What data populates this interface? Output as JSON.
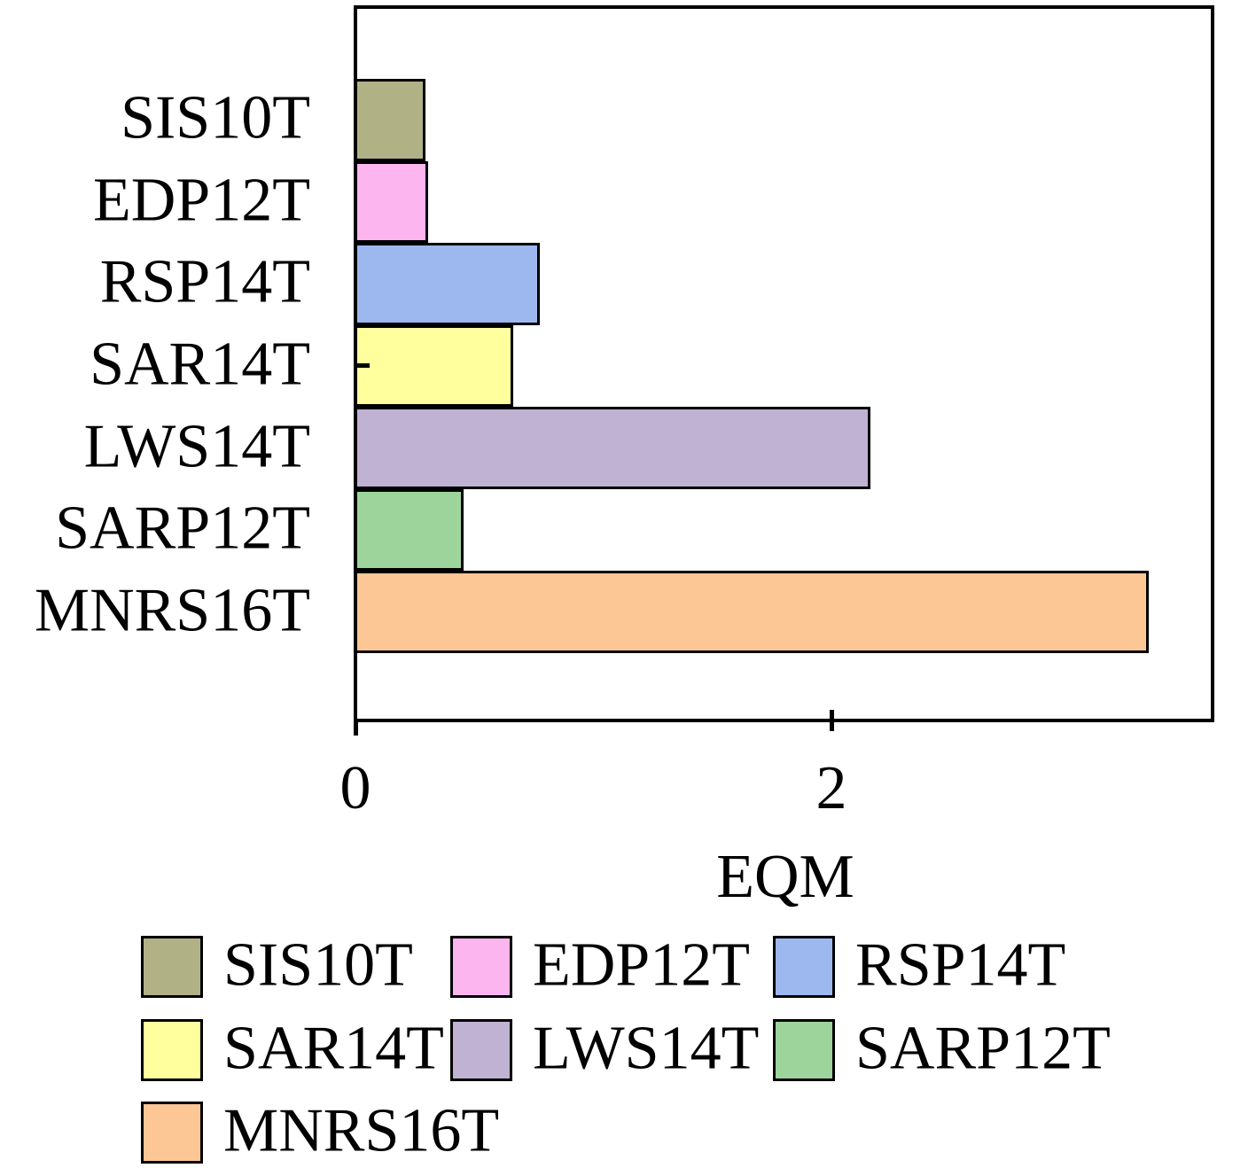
{
  "figure": {
    "background": "#ffffff",
    "frame_color": "#000000"
  },
  "chart_data": {
    "type": "bar",
    "orientation": "horizontal",
    "title": "",
    "xlabel": "EQM",
    "ylabel": "",
    "categories": [
      "SIS10T",
      "EDP12T",
      "RSP14T",
      "SAR14T",
      "LWS14T",
      "SARP12T",
      "MNRS16T"
    ],
    "values": [
      0.29,
      0.3,
      0.77,
      0.66,
      2.16,
      0.45,
      3.33
    ],
    "bar_colors": [
      "#b1b186",
      "#fcb5ee",
      "#9cb8ee",
      "#ffff9e",
      "#c0b2d3",
      "#9dd49b",
      "#fcc795"
    ],
    "bar_border_color": "#000000",
    "xlim": [
      0,
      3.6
    ],
    "xticks": [
      0,
      2
    ],
    "xtick_labels": [
      "0",
      "2"
    ],
    "grid": false,
    "legend": {
      "position": "below-left",
      "columns": 3,
      "labels": [
        "SIS10T",
        "EDP12T",
        "RSP14T",
        "SAR14T",
        "LWS14T",
        "SARP12T",
        "MNRS16T"
      ]
    }
  }
}
